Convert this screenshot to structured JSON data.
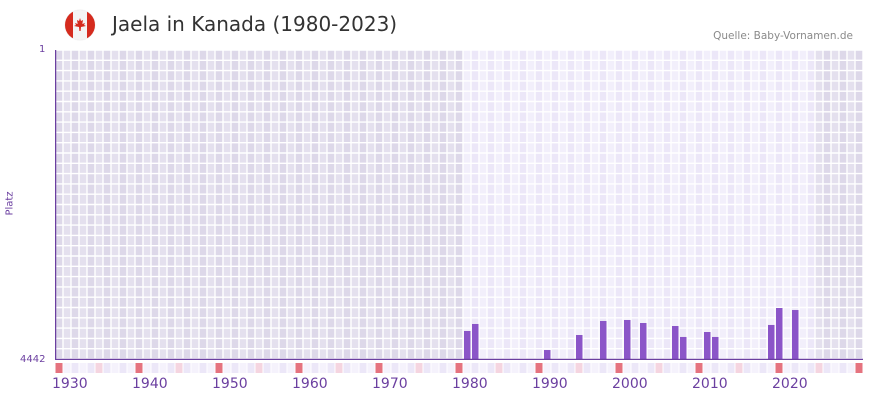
{
  "header": {
    "title": "Jaela in Kanada (1980-2023)",
    "source": "Quelle: Baby-Vornamen.de",
    "flag_icon": "canada-flag-icon"
  },
  "axis": {
    "y_top_label": "1",
    "y_bottom_label": "4442",
    "y_title": "Platz",
    "x_ticks": [
      "1930",
      "1940",
      "1950",
      "1960",
      "1970",
      "1980",
      "1990",
      "2000",
      "2010",
      "2020"
    ]
  },
  "colors": {
    "bar": "#8b55c8",
    "axis": "#6b3fa0",
    "decade_marker": "#e5737f",
    "half_decade_marker": "#f5d5e0",
    "bg_active": "#ede8f8",
    "bg_inactive": "#e1dcec",
    "grid": "#ffffff"
  },
  "chart_data": {
    "type": "bar",
    "title": "Jaela in Kanada (1980-2023)",
    "xlabel": "",
    "ylabel": "Platz",
    "y_inverted": true,
    "ylim": [
      1,
      4442
    ],
    "xlim": [
      1929,
      2029
    ],
    "active_range": [
      1980,
      2023
    ],
    "categories": [
      1980,
      1981,
      1990,
      1994,
      1997,
      2000,
      2002,
      2006,
      2007,
      2010,
      2011,
      2018,
      2019,
      2021
    ],
    "values": [
      4026,
      3926,
      4299,
      4084,
      3883,
      3869,
      3912,
      3955,
      4112,
      4041,
      4112,
      3940,
      3697,
      3726
    ],
    "grid": true,
    "legend": null
  }
}
